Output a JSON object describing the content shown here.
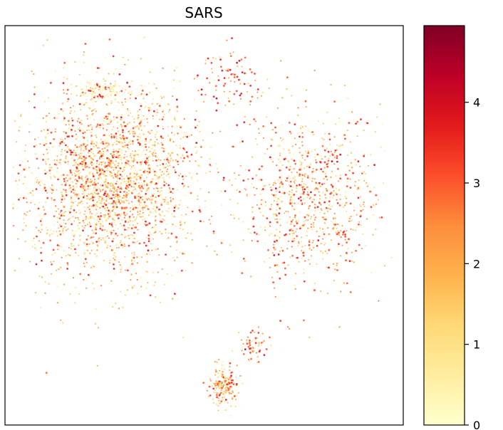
{
  "chart_data": {
    "type": "scatter",
    "title": "SARS",
    "xlabel": "",
    "ylabel": "",
    "x_ticks": "none",
    "y_ticks": "none",
    "grid": false,
    "legend": "none",
    "colorbar": {
      "position": "right",
      "colormap": "YlOrRd",
      "range": [
        0,
        4.95
      ],
      "ticks": [
        0,
        1,
        2,
        3,
        4
      ],
      "tick_labels": [
        "0",
        "1",
        "2",
        "3",
        "4"
      ]
    },
    "clusters": [
      {
        "id": "left-large",
        "center": [
          0.27,
          0.61
        ],
        "spread": [
          0.45,
          0.48
        ],
        "approx_points": 2600,
        "mean_value": 1.6
      },
      {
        "id": "top-left-pale",
        "center": [
          0.24,
          0.84
        ],
        "spread": [
          0.14,
          0.05
        ],
        "approx_points": 150,
        "mean_value": 0.4
      },
      {
        "id": "right",
        "center": [
          0.76,
          0.57
        ],
        "spread": [
          0.38,
          0.45
        ],
        "approx_points": 900,
        "mean_value": 2.0
      },
      {
        "id": "top-strand",
        "center": [
          0.57,
          0.87
        ],
        "spread": [
          0.14,
          0.18
        ],
        "approx_points": 90,
        "mean_value": 2.7
      },
      {
        "id": "middle-small",
        "center": [
          0.62,
          0.2
        ],
        "spread": [
          0.08,
          0.08
        ],
        "approx_points": 60,
        "mean_value": 2.3
      },
      {
        "id": "bottom",
        "center": [
          0.55,
          0.1
        ],
        "spread": [
          0.07,
          0.11
        ],
        "approx_points": 200,
        "mean_value": 1.8
      }
    ]
  }
}
